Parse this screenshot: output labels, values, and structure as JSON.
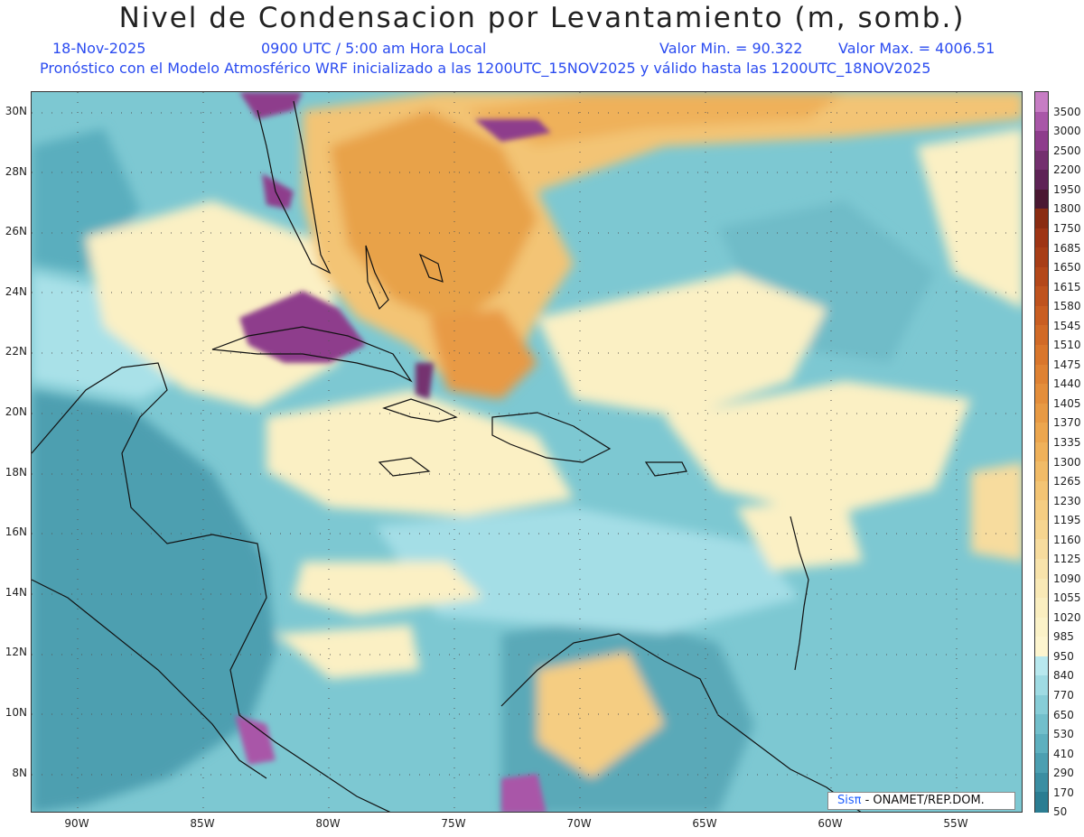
{
  "header": {
    "title": "Nivel de Condensacion por Levantamiento (m, somb.)",
    "date": "18-Nov-2025",
    "time": "0900 UTC / 5:00 am Hora Local",
    "min": "Valor Min. = 90.322",
    "max": "Valor Max. = 4006.51",
    "forecast": "Pronóstico con el Modelo Atmosférico WRF inicializado a las 1200UTC_15NOV2025 y válido hasta las  1200UTC_18NOV2025"
  },
  "axes": {
    "lat_labels": [
      "30N",
      "28N",
      "26N",
      "24N",
      "22N",
      "20N",
      "18N",
      "16N",
      "14N",
      "12N",
      "10N",
      "8N"
    ],
    "lon_labels": [
      "90W",
      "85W",
      "80W",
      "75W",
      "70W",
      "65W",
      "60W",
      "55W"
    ]
  },
  "colorbar": {
    "levels": [
      "3500",
      "3000",
      "2500",
      "2200",
      "1950",
      "1800",
      "1750",
      "1685",
      "1650",
      "1615",
      "1580",
      "1545",
      "1510",
      "1475",
      "1440",
      "1405",
      "1370",
      "1335",
      "1300",
      "1265",
      "1230",
      "1195",
      "1160",
      "1125",
      "1090",
      "1055",
      "1020",
      "985",
      "950",
      "840",
      "770",
      "650",
      "530",
      "410",
      "290",
      "170",
      "50"
    ],
    "colors": [
      "#c77dc4",
      "#a957a8",
      "#8e3d8c",
      "#74306f",
      "#5e2356",
      "#4a1832",
      "#8a2c12",
      "#9e3515",
      "#a83e17",
      "#b4481a",
      "#bf531e",
      "#c95e22",
      "#d16a27",
      "#d9762c",
      "#df8233",
      "#e48e3b",
      "#e89a44",
      "#eca64e",
      "#efb15a",
      "#f1bb67",
      "#f3c474",
      "#f5cd82",
      "#f6d590",
      "#f7dc9e",
      "#f8e3ab",
      "#f9e9b6",
      "#faeec0",
      "#fbf2c8",
      "#fdf5cf",
      "#b8e8ee",
      "#9fdbe3",
      "#87cdd7",
      "#72bfcb",
      "#5eb0bf",
      "#4c9fb1",
      "#3b8ea2",
      "#2b7d92"
    ]
  },
  "credit": {
    "brand": "Sisπ",
    "org": " - ONAMET/REP.DOM."
  }
}
